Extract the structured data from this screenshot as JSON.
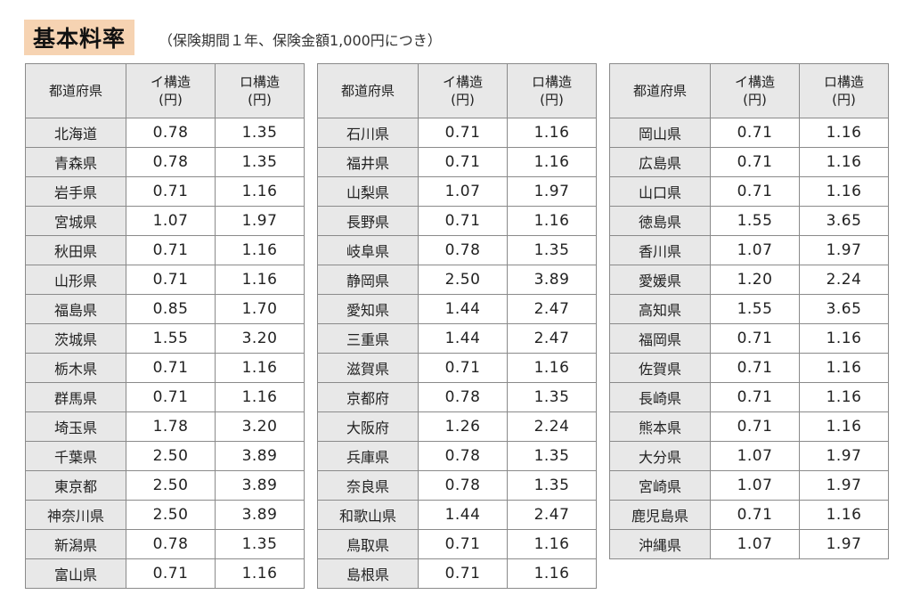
{
  "title": "基本料率",
  "subtitle": "（保険期間１年、保険金額1,000円につき）",
  "headers": {
    "prefecture": "都道府県",
    "type_i_line1": "イ構造",
    "type_i_line2": "(円)",
    "type_ro_line1": "ロ構造",
    "type_ro_line2": "(円)"
  },
  "tables": [
    {
      "rows": [
        {
          "pref": "北海道",
          "i": "0.78",
          "ro": "1.35"
        },
        {
          "pref": "青森県",
          "i": "0.78",
          "ro": "1.35"
        },
        {
          "pref": "岩手県",
          "i": "0.71",
          "ro": "1.16"
        },
        {
          "pref": "宮城県",
          "i": "1.07",
          "ro": "1.97"
        },
        {
          "pref": "秋田県",
          "i": "0.71",
          "ro": "1.16"
        },
        {
          "pref": "山形県",
          "i": "0.71",
          "ro": "1.16"
        },
        {
          "pref": "福島県",
          "i": "0.85",
          "ro": "1.70"
        },
        {
          "pref": "茨城県",
          "i": "1.55",
          "ro": "3.20"
        },
        {
          "pref": "栃木県",
          "i": "0.71",
          "ro": "1.16"
        },
        {
          "pref": "群馬県",
          "i": "0.71",
          "ro": "1.16"
        },
        {
          "pref": "埼玉県",
          "i": "1.78",
          "ro": "3.20"
        },
        {
          "pref": "千葉県",
          "i": "2.50",
          "ro": "3.89"
        },
        {
          "pref": "東京都",
          "i": "2.50",
          "ro": "3.89"
        },
        {
          "pref": "神奈川県",
          "i": "2.50",
          "ro": "3.89"
        },
        {
          "pref": "新潟県",
          "i": "0.78",
          "ro": "1.35"
        },
        {
          "pref": "富山県",
          "i": "0.71",
          "ro": "1.16"
        }
      ]
    },
    {
      "rows": [
        {
          "pref": "石川県",
          "i": "0.71",
          "ro": "1.16"
        },
        {
          "pref": "福井県",
          "i": "0.71",
          "ro": "1.16"
        },
        {
          "pref": "山梨県",
          "i": "1.07",
          "ro": "1.97"
        },
        {
          "pref": "長野県",
          "i": "0.71",
          "ro": "1.16"
        },
        {
          "pref": "岐阜県",
          "i": "0.78",
          "ro": "1.35"
        },
        {
          "pref": "静岡県",
          "i": "2.50",
          "ro": "3.89"
        },
        {
          "pref": "愛知県",
          "i": "1.44",
          "ro": "2.47"
        },
        {
          "pref": "三重県",
          "i": "1.44",
          "ro": "2.47"
        },
        {
          "pref": "滋賀県",
          "i": "0.71",
          "ro": "1.16"
        },
        {
          "pref": "京都府",
          "i": "0.78",
          "ro": "1.35"
        },
        {
          "pref": "大阪府",
          "i": "1.26",
          "ro": "2.24"
        },
        {
          "pref": "兵庫県",
          "i": "0.78",
          "ro": "1.35"
        },
        {
          "pref": "奈良県",
          "i": "0.78",
          "ro": "1.35"
        },
        {
          "pref": "和歌山県",
          "i": "1.44",
          "ro": "2.47"
        },
        {
          "pref": "鳥取県",
          "i": "0.71",
          "ro": "1.16"
        },
        {
          "pref": "島根県",
          "i": "0.71",
          "ro": "1.16"
        }
      ]
    },
    {
      "rows": [
        {
          "pref": "岡山県",
          "i": "0.71",
          "ro": "1.16"
        },
        {
          "pref": "広島県",
          "i": "0.71",
          "ro": "1.16"
        },
        {
          "pref": "山口県",
          "i": "0.71",
          "ro": "1.16"
        },
        {
          "pref": "徳島県",
          "i": "1.55",
          "ro": "3.65"
        },
        {
          "pref": "香川県",
          "i": "1.07",
          "ro": "1.97"
        },
        {
          "pref": "愛媛県",
          "i": "1.20",
          "ro": "2.24"
        },
        {
          "pref": "高知県",
          "i": "1.55",
          "ro": "3.65"
        },
        {
          "pref": "福岡県",
          "i": "0.71",
          "ro": "1.16"
        },
        {
          "pref": "佐賀県",
          "i": "0.71",
          "ro": "1.16"
        },
        {
          "pref": "長崎県",
          "i": "0.71",
          "ro": "1.16"
        },
        {
          "pref": "熊本県",
          "i": "0.71",
          "ro": "1.16"
        },
        {
          "pref": "大分県",
          "i": "1.07",
          "ro": "1.97"
        },
        {
          "pref": "宮崎県",
          "i": "1.07",
          "ro": "1.97"
        },
        {
          "pref": "鹿児島県",
          "i": "0.71",
          "ro": "1.16"
        },
        {
          "pref": "沖縄県",
          "i": "1.07",
          "ro": "1.97"
        }
      ]
    }
  ]
}
